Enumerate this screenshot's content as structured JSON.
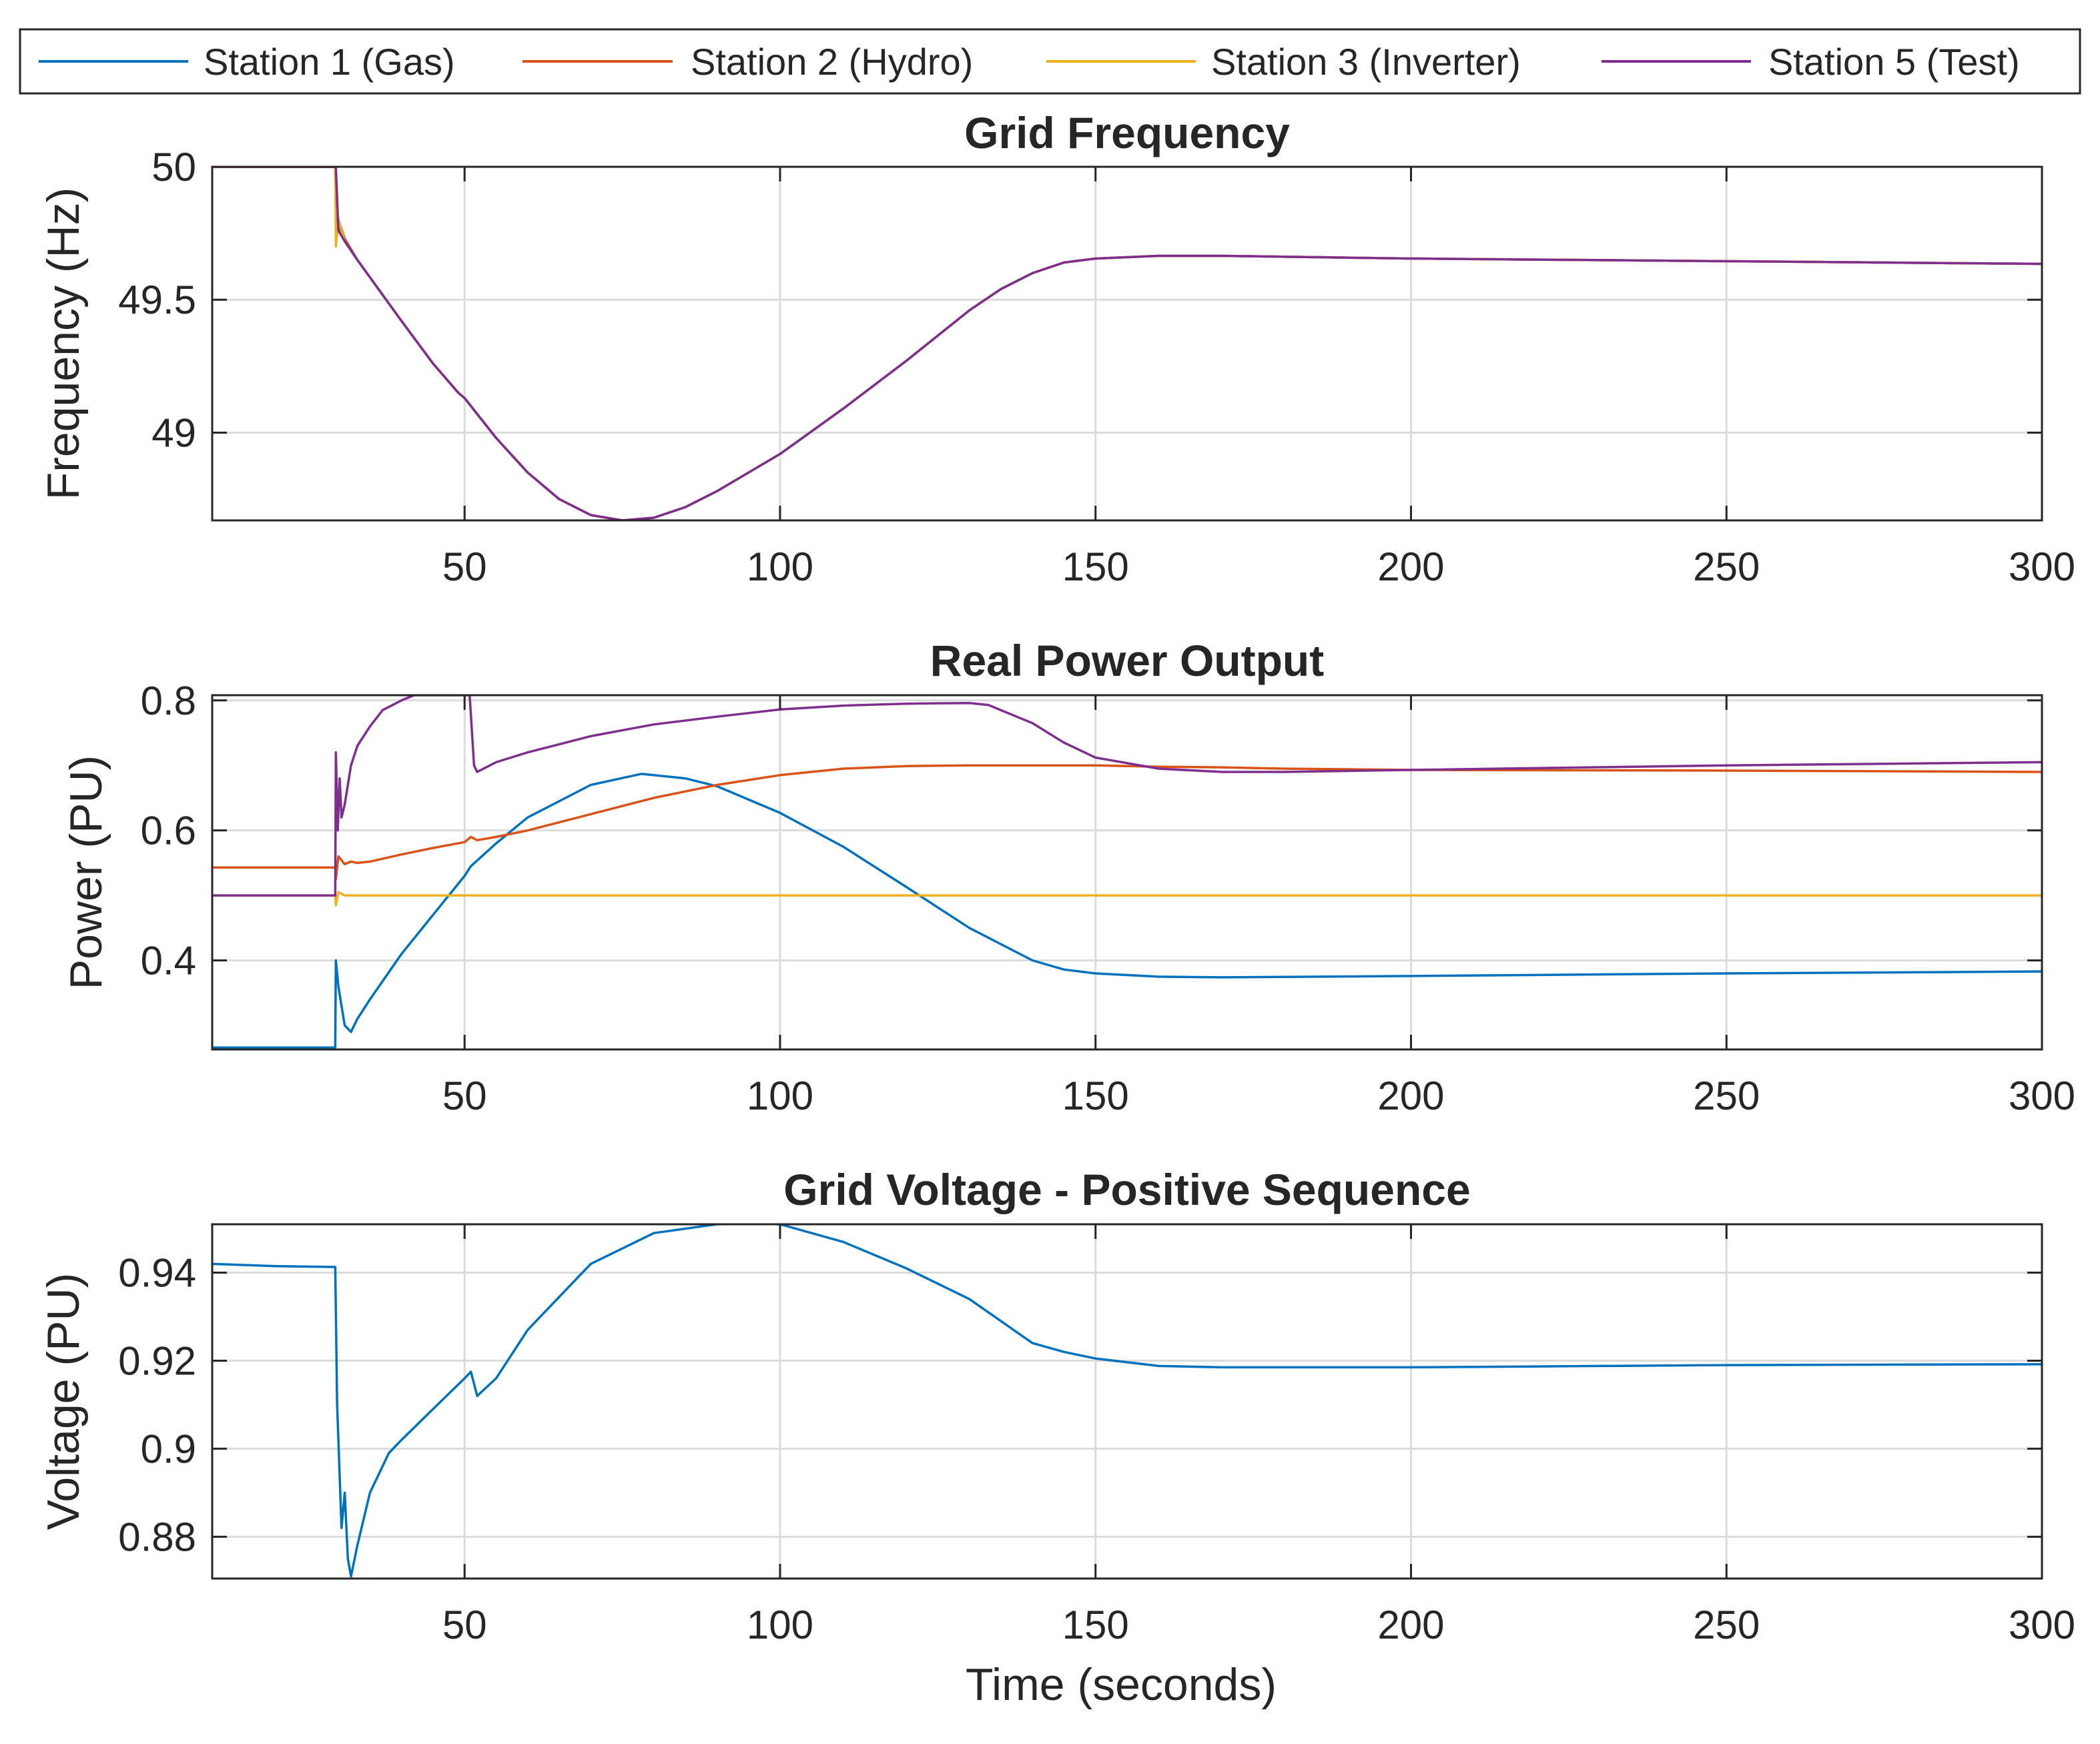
{
  "chart_data": {
    "type": "line",
    "xlabel": "Time (seconds)",
    "legend": {
      "placement": "top",
      "entries": [
        {
          "name": "Station 1 (Gas)",
          "color": "#0072BD"
        },
        {
          "name": "Station 2 (Hydro)",
          "color": "#D95319"
        },
        {
          "name": "Station 3 (Inverter)",
          "color": "#EDB120"
        },
        {
          "name": "Station 5 (Test)",
          "color": "#7E2F8E"
        }
      ]
    },
    "panels": [
      {
        "id": "frequency",
        "title": "Grid Frequency",
        "ylabel": "Frequency (Hz)",
        "xlim": [
          10,
          300
        ],
        "ylim": [
          48.67,
          50.0
        ],
        "xticks": [
          50,
          100,
          150,
          200,
          250,
          300
        ],
        "xtick_labels": [
          "50",
          "100",
          "150",
          "200",
          "250",
          "300"
        ],
        "yticks": [
          49,
          49.5,
          50
        ],
        "ytick_labels": [
          "49",
          "49.5",
          "50"
        ],
        "grid": true,
        "series": [
          {
            "name": "Station 1 (Gas)",
            "color": "#0072BD",
            "x": [
              10,
              29.5,
              29.6,
              30,
              31,
              33,
              40,
              45,
              49,
              50,
              51,
              55,
              60,
              65,
              70,
              75,
              80,
              85,
              90,
              100,
              110,
              120,
              130,
              135,
              140,
              145,
              150,
              160,
              170,
              200,
              250,
              300
            ],
            "y": [
              50.0,
              50.0,
              49.82,
              49.78,
              49.72,
              49.65,
              49.42,
              49.26,
              49.15,
              49.13,
              49.1,
              48.98,
              48.85,
              48.75,
              48.69,
              48.67,
              48.68,
              48.72,
              48.78,
              48.92,
              49.09,
              49.27,
              49.46,
              49.54,
              49.6,
              49.64,
              49.655,
              49.665,
              49.665,
              49.655,
              49.645,
              49.635
            ]
          },
          {
            "name": "Station 2 (Hydro)",
            "color": "#D95319",
            "x": [
              10,
              29.5,
              29.6,
              30,
              31,
              33,
              40,
              45,
              49,
              50,
              51,
              55,
              60,
              65,
              70,
              75,
              80,
              85,
              90,
              100,
              110,
              120,
              130,
              135,
              140,
              145,
              150,
              160,
              170,
              200,
              250,
              300
            ],
            "y": [
              50.0,
              50.0,
              49.85,
              49.8,
              49.73,
              49.65,
              49.42,
              49.26,
              49.15,
              49.13,
              49.1,
              48.98,
              48.85,
              48.75,
              48.69,
              48.67,
              48.68,
              48.72,
              48.78,
              48.92,
              49.09,
              49.27,
              49.46,
              49.54,
              49.6,
              49.64,
              49.655,
              49.665,
              49.665,
              49.655,
              49.645,
              49.635
            ]
          },
          {
            "name": "Station 3 (Inverter)",
            "color": "#EDB120",
            "x": [
              10,
              29.5,
              29.6,
              30,
              31,
              33,
              40,
              45,
              49,
              50,
              51,
              55,
              60,
              65,
              70,
              75,
              80,
              85,
              90,
              100,
              110,
              120,
              130,
              135,
              140,
              145,
              150,
              160,
              170,
              200,
              250,
              300
            ],
            "y": [
              50.0,
              50.0,
              49.7,
              49.8,
              49.72,
              49.65,
              49.42,
              49.26,
              49.15,
              49.13,
              49.1,
              48.98,
              48.85,
              48.75,
              48.69,
              48.67,
              48.68,
              48.72,
              48.78,
              48.92,
              49.09,
              49.27,
              49.46,
              49.54,
              49.6,
              49.64,
              49.655,
              49.665,
              49.665,
              49.655,
              49.645,
              49.635
            ]
          },
          {
            "name": "Station 5 (Test)",
            "color": "#7E2F8E",
            "x": [
              10,
              29.5,
              29.6,
              30,
              31,
              33,
              40,
              45,
              49,
              50,
              51,
              55,
              60,
              65,
              70,
              75,
              80,
              85,
              90,
              100,
              110,
              120,
              130,
              135,
              140,
              145,
              150,
              160,
              170,
              200,
              250,
              300
            ],
            "y": [
              50.0,
              50.0,
              50.0,
              49.76,
              49.72,
              49.65,
              49.42,
              49.26,
              49.15,
              49.13,
              49.1,
              48.98,
              48.85,
              48.75,
              48.69,
              48.67,
              48.68,
              48.72,
              48.78,
              48.92,
              49.09,
              49.27,
              49.46,
              49.54,
              49.6,
              49.64,
              49.655,
              49.665,
              49.665,
              49.655,
              49.645,
              49.635
            ]
          }
        ]
      },
      {
        "id": "power",
        "title": "Real Power Output",
        "ylabel": "Power (PU)",
        "xlim": [
          10,
          300
        ],
        "ylim": [
          0.263,
          0.808
        ],
        "xticks": [
          50,
          100,
          150,
          200,
          250,
          300
        ],
        "xtick_labels": [
          "50",
          "100",
          "150",
          "200",
          "250",
          "300"
        ],
        "yticks": [
          0.4,
          0.6,
          0.8
        ],
        "ytick_labels": [
          "0.4",
          "0.6",
          "0.8"
        ],
        "grid": true,
        "series": [
          {
            "name": "Station 1 (Gas)",
            "color": "#0072BD",
            "x": [
              10,
              29.5,
              29.6,
              30,
              30.5,
              31,
              32,
              33,
              35,
              40,
              45,
              50,
              51,
              55,
              60,
              70,
              78,
              85,
              90,
              100,
              110,
              120,
              130,
              140,
              145,
              150,
              160,
              170,
              200,
              250,
              300
            ],
            "y": [
              0.266,
              0.266,
              0.4,
              0.36,
              0.33,
              0.3,
              0.29,
              0.31,
              0.34,
              0.41,
              0.47,
              0.53,
              0.545,
              0.58,
              0.62,
              0.67,
              0.687,
              0.68,
              0.668,
              0.627,
              0.575,
              0.513,
              0.45,
              0.4,
              0.386,
              0.38,
              0.375,
              0.374,
              0.376,
              0.38,
              0.383
            ]
          },
          {
            "name": "Station 2 (Hydro)",
            "color": "#D95319",
            "x": [
              10,
              29.5,
              29.6,
              30,
              31,
              32,
              33,
              35,
              40,
              45,
              50,
              51,
              52,
              55,
              60,
              70,
              80,
              90,
              100,
              110,
              120,
              130,
              140,
              150,
              160,
              170,
              180,
              200,
              250,
              300
            ],
            "y": [
              0.543,
              0.543,
              0.525,
              0.56,
              0.548,
              0.552,
              0.55,
              0.552,
              0.563,
              0.573,
              0.582,
              0.59,
              0.585,
              0.59,
              0.6,
              0.625,
              0.65,
              0.67,
              0.685,
              0.695,
              0.699,
              0.7,
              0.7,
              0.7,
              0.698,
              0.697,
              0.695,
              0.693,
              0.692,
              0.69
            ]
          },
          {
            "name": "Station 3 (Inverter)",
            "color": "#EDB120",
            "x": [
              10,
              29.5,
              29.6,
              30,
              31,
              50,
              100,
              150,
              200,
              250,
              300
            ],
            "y": [
              0.5,
              0.5,
              0.485,
              0.505,
              0.5,
              0.5,
              0.5,
              0.5,
              0.5,
              0.5,
              0.5
            ]
          },
          {
            "name": "Station 5 (Test)",
            "color": "#7E2F8E",
            "x": [
              10,
              29.5,
              29.6,
              29.9,
              30.2,
              30.5,
              31,
              32,
              33,
              35,
              37,
              40,
              42,
              50,
              50.8,
              51.5,
              52,
              55,
              60,
              70,
              80,
              90,
              100,
              110,
              120,
              130,
              133,
              140,
              145,
              150,
              160,
              170,
              180,
              200,
              250,
              300
            ],
            "y": [
              0.5,
              0.5,
              0.72,
              0.6,
              0.68,
              0.62,
              0.64,
              0.7,
              0.73,
              0.76,
              0.785,
              0.8,
              0.808,
              0.808,
              0.808,
              0.7,
              0.69,
              0.705,
              0.72,
              0.745,
              0.763,
              0.775,
              0.786,
              0.792,
              0.795,
              0.796,
              0.793,
              0.765,
              0.735,
              0.712,
              0.695,
              0.69,
              0.69,
              0.693,
              0.7,
              0.705
            ]
          }
        ]
      },
      {
        "id": "voltage",
        "title": "Grid Voltage - Positive Sequence",
        "ylabel": "Voltage (PU)",
        "xlim": [
          10,
          300
        ],
        "ylim": [
          0.8705,
          0.951
        ],
        "xticks": [
          50,
          100,
          150,
          200,
          250,
          300
        ],
        "xtick_labels": [
          "50",
          "100",
          "150",
          "200",
          "250",
          "300"
        ],
        "yticks": [
          0.88,
          0.9,
          0.92,
          0.94
        ],
        "ytick_labels": [
          "0.88",
          "0.9",
          "0.92",
          "0.94"
        ],
        "grid": true,
        "series": [
          {
            "name": "Station 1 (Gas)",
            "color": "#0072BD",
            "x": [
              10,
              20,
              29.5,
              29.8,
              30.5,
              31,
              31.5,
              32,
              33,
              35,
              38,
              40,
              45,
              50,
              51,
              52,
              55,
              60,
              70,
              80,
              90,
              96,
              100,
              110,
              120,
              130,
              135,
              140,
              145,
              150,
              160,
              170,
              200,
              250,
              300
            ],
            "y": [
              0.942,
              0.9415,
              0.9413,
              0.91,
              0.882,
              0.89,
              0.875,
              0.871,
              0.878,
              0.89,
              0.899,
              0.902,
              0.909,
              0.916,
              0.9175,
              0.912,
              0.916,
              0.927,
              0.942,
              0.949,
              0.951,
              0.9512,
              0.951,
              0.947,
              0.941,
              0.934,
              0.929,
              0.924,
              0.922,
              0.9205,
              0.9188,
              0.9185,
              0.9185,
              0.919,
              0.9192
            ]
          }
        ]
      }
    ]
  }
}
